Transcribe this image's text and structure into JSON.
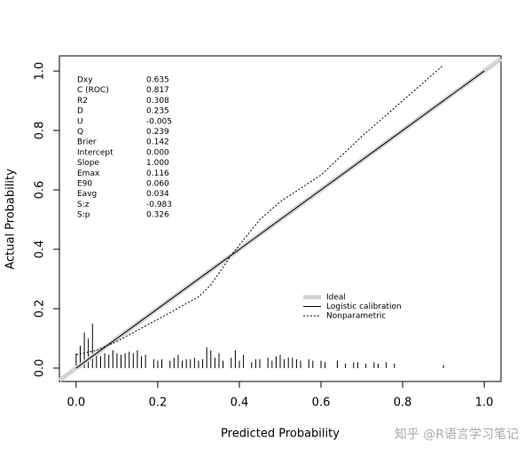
{
  "chart_data": {
    "type": "calibration",
    "xlabel": "Predicted Probability",
    "ylabel": "Actual Probability",
    "xlim": [
      -0.041,
      1.041
    ],
    "ylim": [
      -0.045,
      1.051
    ],
    "xticks": [
      {
        "value": 0,
        "label": "0.0"
      },
      0.2,
      0.4,
      0.6,
      0.8,
      {
        "value": 1,
        "label": "1.0"
      }
    ],
    "yticks": [
      {
        "value": 0,
        "label": "0.0"
      },
      0.2,
      0.4,
      0.6,
      0.8,
      {
        "value": 1,
        "label": "1.0"
      }
    ],
    "series": [
      {
        "name": "Ideal",
        "color": "#d3d3d3",
        "x": [
          -0.041,
          1.041
        ],
        "values": [
          -0.041,
          1.041
        ]
      },
      {
        "name": "Logistic calibration",
        "color": "#000000",
        "x": [
          0,
          0.2,
          0.4,
          0.6,
          0.8,
          1
        ],
        "values": [
          0,
          0.2,
          0.4,
          0.6,
          0.8,
          1
        ]
      },
      {
        "name": "Nonparametric",
        "color": "#000000",
        "dash": true,
        "x": [
          0,
          0.05,
          0.1,
          0.2,
          0.3,
          0.33,
          0.38,
          0.45,
          0.5,
          0.6,
          0.7,
          0.8,
          0.9
        ],
        "values": [
          0.045,
          0.06,
          0.09,
          0.164,
          0.24,
          0.28,
          0.38,
          0.5,
          0.56,
          0.65,
          0.78,
          0.9,
          1.02
        ]
      }
    ],
    "spikes": {
      "x": [
        0.0,
        0.01,
        0.02,
        0.03,
        0.04,
        0.05,
        0.06,
        0.07,
        0.08,
        0.09,
        0.1,
        0.11,
        0.12,
        0.13,
        0.14,
        0.15,
        0.16,
        0.17,
        0.19,
        0.2,
        0.21,
        0.23,
        0.24,
        0.25,
        0.26,
        0.27,
        0.28,
        0.29,
        0.3,
        0.31,
        0.32,
        0.33,
        0.34,
        0.35,
        0.36,
        0.38,
        0.39,
        0.4,
        0.41,
        0.43,
        0.44,
        0.45,
        0.47,
        0.48,
        0.49,
        0.5,
        0.51,
        0.52,
        0.53,
        0.54,
        0.55,
        0.57,
        0.58,
        0.6,
        0.61,
        0.64,
        0.66,
        0.68,
        0.69,
        0.71,
        0.73,
        0.74,
        0.76,
        0.78,
        0.9
      ],
      "values": [
        0.05,
        0.075,
        0.12,
        0.1,
        0.15,
        0.06,
        0.04,
        0.05,
        0.045,
        0.06,
        0.05,
        0.045,
        0.05,
        0.055,
        0.05,
        0.06,
        0.04,
        0.045,
        0.03,
        0.025,
        0.03,
        0.025,
        0.035,
        0.045,
        0.025,
        0.03,
        0.03,
        0.035,
        0.025,
        0.03,
        0.07,
        0.06,
        0.035,
        0.05,
        0.025,
        0.035,
        0.06,
        0.025,
        0.045,
        0.02,
        0.03,
        0.03,
        0.035,
        0.025,
        0.04,
        0.045,
        0.03,
        0.035,
        0.035,
        0.03,
        0.025,
        0.03,
        0.025,
        0.025,
        0.02,
        0.025,
        0.015,
        0.02,
        0.02,
        0.015,
        0.02,
        0.015,
        0.02,
        0.015,
        0.01
      ]
    },
    "stats": [
      [
        "Dxy",
        "0.635"
      ],
      [
        "C (ROC)",
        "0.817"
      ],
      [
        "R2",
        "0.308"
      ],
      [
        "D",
        "0.235"
      ],
      [
        "U",
        "-0.005"
      ],
      [
        "Q",
        "0.239"
      ],
      [
        "Brier",
        "0.142"
      ],
      [
        "Intercept",
        "0.000"
      ],
      [
        "Slope",
        "1.000"
      ],
      [
        "Emax",
        "0.116"
      ],
      [
        "E90",
        "0.060"
      ],
      [
        "Eavg",
        "0.034"
      ],
      [
        "S:z",
        "-0.983"
      ],
      [
        "S:p",
        "0.326"
      ]
    ],
    "watermark": "知乎 @R语言学习笔记"
  }
}
